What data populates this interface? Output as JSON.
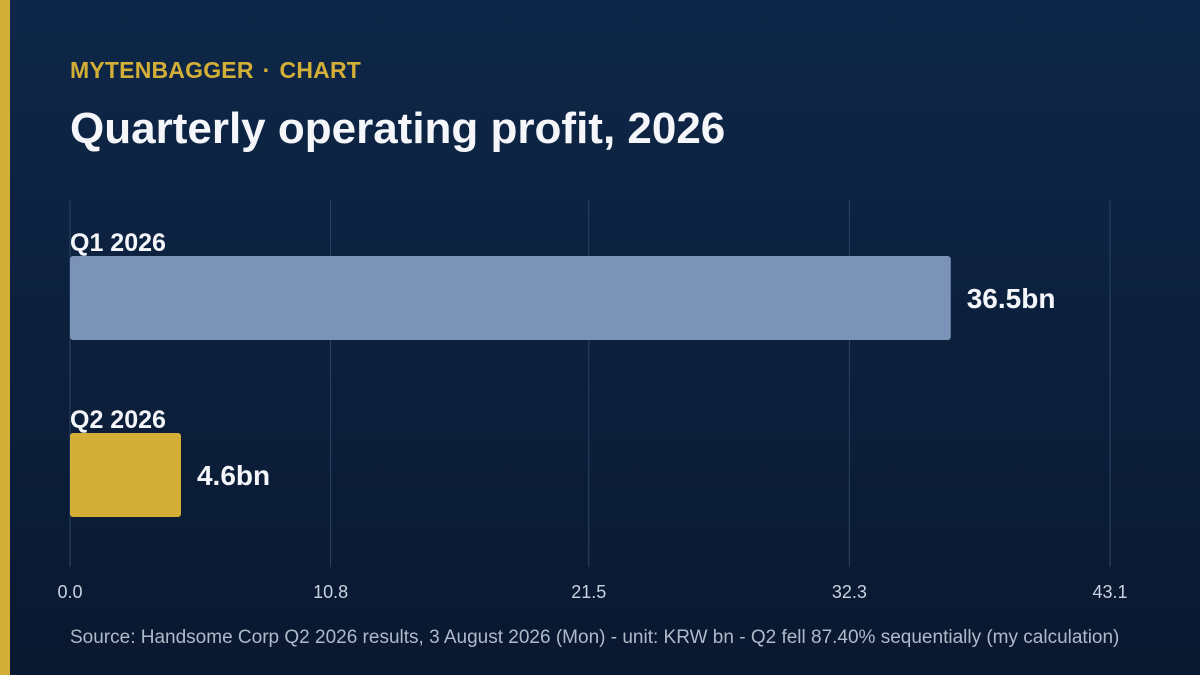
{
  "theme": {
    "accent": "#d4af37",
    "brand_color": "#d4af37",
    "grid_color": "#2c4466",
    "text_color": "#f4f6fa",
    "tick_color": "#c9d2df"
  },
  "header": {
    "brand": "MYTENBAGGER",
    "separator": "·",
    "section": "CHART"
  },
  "chart_data": {
    "type": "bar",
    "orientation": "horizontal",
    "title": "Quarterly operating profit, 2026",
    "categories": [
      "Q1 2026",
      "Q2 2026"
    ],
    "values": [
      36.5,
      4.6
    ],
    "value_labels": [
      "36.5bn",
      "4.6bn"
    ],
    "bar_colors": [
      "#7b93b6",
      "#d4af37"
    ],
    "xlim": [
      0,
      43.1
    ],
    "xticks": [
      0.0,
      10.8,
      21.5,
      32.3,
      43.1
    ],
    "xtick_labels": [
      "0.0",
      "10.8",
      "21.5",
      "32.3",
      "43.1"
    ],
    "grid": true,
    "xlabel": "",
    "ylabel": ""
  },
  "footer": {
    "source": "Source: Handsome Corp Q2 2026 results, 3 August 2026 (Mon) - unit: KRW bn - Q2 fell 87.40% sequentially (my calculation)"
  }
}
